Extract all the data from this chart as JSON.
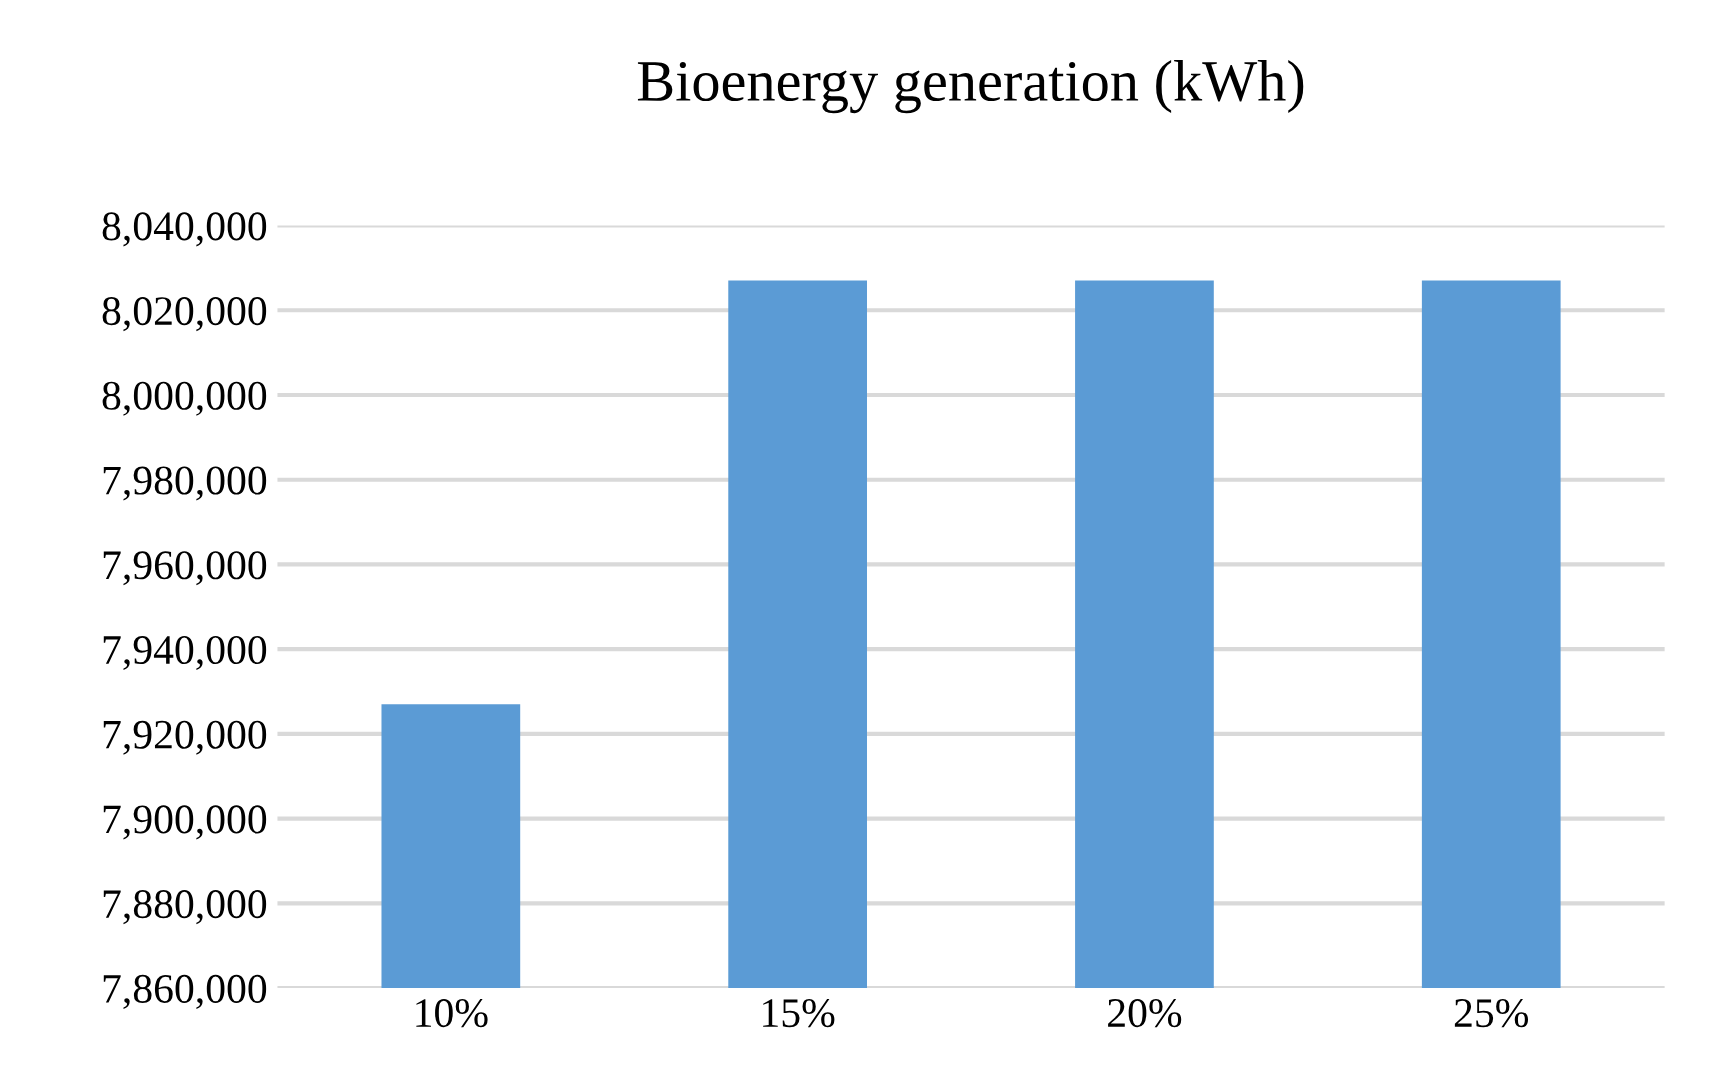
{
  "chart_data": {
    "type": "bar",
    "title": "Bioenergy generation (kWh)",
    "categories": [
      "10%",
      "15%",
      "20%",
      "25%"
    ],
    "values": [
      7927000,
      8027000,
      8027000,
      8027000
    ],
    "color": "#5b9bd5",
    "ylim": [
      7860000,
      8040000
    ],
    "yticks": [
      {
        "value": 7860000,
        "label": "7,860,000"
      },
      {
        "value": 7880000,
        "label": "7,880,000"
      },
      {
        "value": 7900000,
        "label": "7,900,000"
      },
      {
        "value": 7920000,
        "label": "7,920,000"
      },
      {
        "value": 7940000,
        "label": "7,940,000"
      },
      {
        "value": 7960000,
        "label": "7,960,000"
      },
      {
        "value": 7980000,
        "label": "7,980,000"
      },
      {
        "value": 8000000,
        "label": "8,000,000"
      },
      {
        "value": 8020000,
        "label": "8,020,000"
      },
      {
        "value": 8040000,
        "label": "8,040,000"
      }
    ],
    "grid": "y"
  }
}
